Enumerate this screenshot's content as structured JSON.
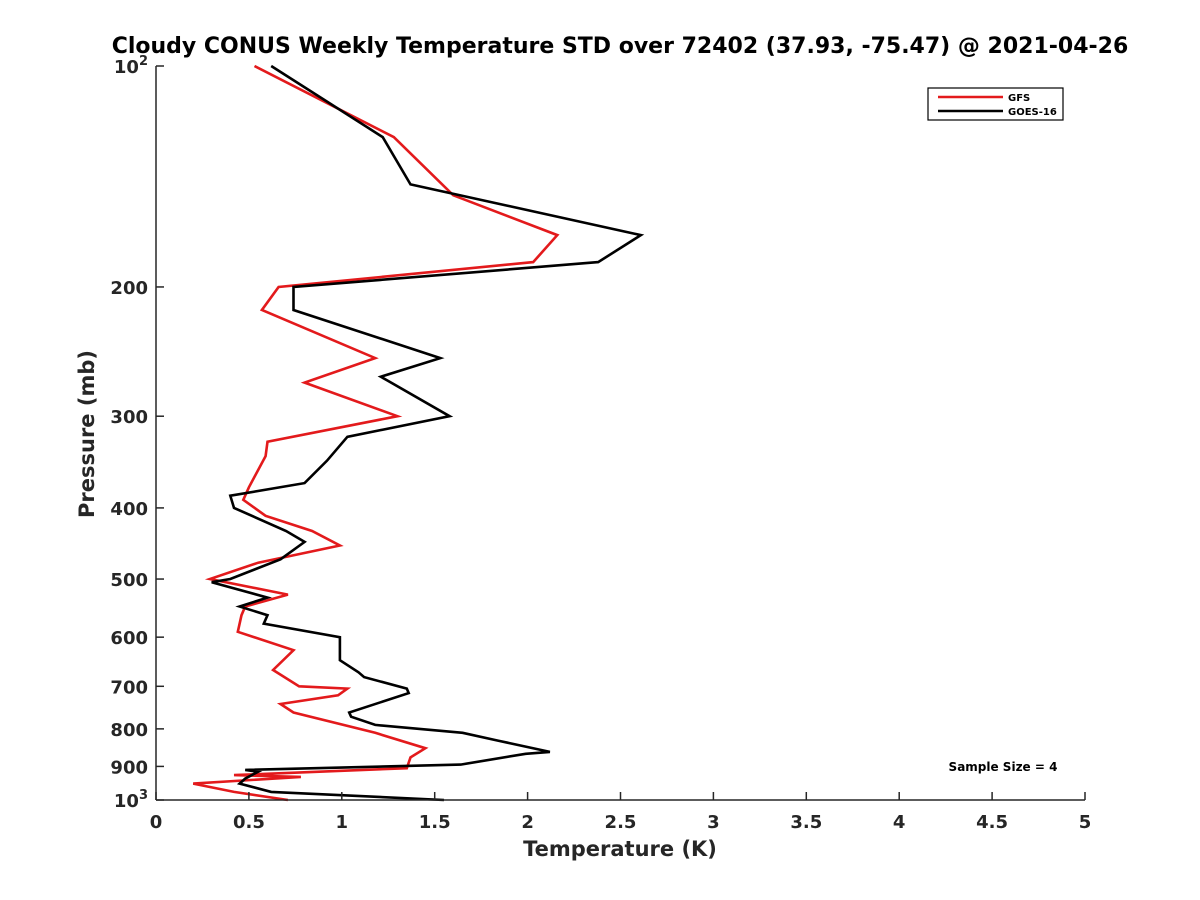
{
  "chart_data": {
    "type": "line",
    "title": "Cloudy CONUS Weekly Temperature STD over 72402 (37.93, -75.47) @ 2021-04-26",
    "xlabel": "Temperature (K)",
    "ylabel": "Pressure (mb)",
    "xlim": [
      0,
      5
    ],
    "ylim": [
      100,
      1000
    ],
    "y_scale": "log",
    "y_reversed": true,
    "x_ticks": [
      "0",
      "0.5",
      "1",
      "1.5",
      "2",
      "2.5",
      "3",
      "3.5",
      "4",
      "4.5",
      "5"
    ],
    "y_ticks": [
      {
        "value": 100,
        "base": "10",
        "exp": "2"
      },
      {
        "value": 200,
        "label": "200"
      },
      {
        "value": 300,
        "label": "300"
      },
      {
        "value": 400,
        "label": "400"
      },
      {
        "value": 500,
        "label": "500"
      },
      {
        "value": 600,
        "label": "600"
      },
      {
        "value": 700,
        "label": "700"
      },
      {
        "value": 800,
        "label": "800"
      },
      {
        "value": 900,
        "label": "900"
      },
      {
        "value": 1000,
        "base": "10",
        "exp": "3"
      }
    ],
    "grid": false,
    "legend_position": "top-right",
    "annotation": "Sample Size = 4",
    "series": [
      {
        "name": "GFS",
        "color": "#e31a1c",
        "points": [
          [
            0.53,
            100
          ],
          [
            1.28,
            125
          ],
          [
            1.6,
            150
          ],
          [
            2.16,
            170
          ],
          [
            2.03,
            185
          ],
          [
            0.66,
            200
          ],
          [
            0.57,
            215
          ],
          [
            1.18,
            250
          ],
          [
            0.8,
            270
          ],
          [
            1.3,
            300
          ],
          [
            0.6,
            325
          ],
          [
            0.59,
            340
          ],
          [
            0.5,
            375
          ],
          [
            0.47,
            390
          ],
          [
            0.59,
            410
          ],
          [
            0.84,
            430
          ],
          [
            0.99,
            450
          ],
          [
            0.55,
            475
          ],
          [
            0.29,
            500
          ],
          [
            0.71,
            525
          ],
          [
            0.48,
            545
          ],
          [
            0.46,
            560
          ],
          [
            0.44,
            590
          ],
          [
            0.74,
            625
          ],
          [
            0.63,
            665
          ],
          [
            0.77,
            700
          ],
          [
            1.03,
            705
          ],
          [
            0.98,
            720
          ],
          [
            0.67,
            740
          ],
          [
            0.74,
            760
          ],
          [
            1.18,
            810
          ],
          [
            1.45,
            850
          ],
          [
            1.37,
            875
          ],
          [
            1.35,
            905
          ],
          [
            0.42,
            925
          ],
          [
            0.78,
            930
          ],
          [
            0.2,
            950
          ],
          [
            0.42,
            975
          ],
          [
            0.71,
            1000
          ]
        ]
      },
      {
        "name": "GOES-16",
        "color": "#000000",
        "points": [
          [
            0.62,
            100
          ],
          [
            1.22,
            125
          ],
          [
            1.37,
            145
          ],
          [
            2.61,
            170
          ],
          [
            2.38,
            185
          ],
          [
            0.74,
            200
          ],
          [
            0.74,
            215
          ],
          [
            1.53,
            250
          ],
          [
            1.21,
            265
          ],
          [
            1.58,
            300
          ],
          [
            1.03,
            320
          ],
          [
            0.92,
            345
          ],
          [
            0.8,
            370
          ],
          [
            0.4,
            385
          ],
          [
            0.42,
            400
          ],
          [
            0.7,
            430
          ],
          [
            0.8,
            445
          ],
          [
            0.67,
            470
          ],
          [
            0.4,
            500
          ],
          [
            0.3,
            505
          ],
          [
            0.6,
            530
          ],
          [
            0.45,
            545
          ],
          [
            0.6,
            560
          ],
          [
            0.58,
            575
          ],
          [
            0.99,
            600
          ],
          [
            0.99,
            645
          ],
          [
            1.09,
            670
          ],
          [
            1.12,
            680
          ],
          [
            1.35,
            705
          ],
          [
            1.36,
            715
          ],
          [
            1.04,
            760
          ],
          [
            1.05,
            770
          ],
          [
            1.18,
            790
          ],
          [
            1.65,
            810
          ],
          [
            1.84,
            830
          ],
          [
            2.12,
            860
          ],
          [
            1.99,
            865
          ],
          [
            1.64,
            895
          ],
          [
            0.48,
            910
          ],
          [
            0.55,
            915
          ],
          [
            0.48,
            935
          ],
          [
            0.45,
            950
          ],
          [
            0.62,
            975
          ],
          [
            1.55,
            1000
          ]
        ]
      }
    ]
  }
}
